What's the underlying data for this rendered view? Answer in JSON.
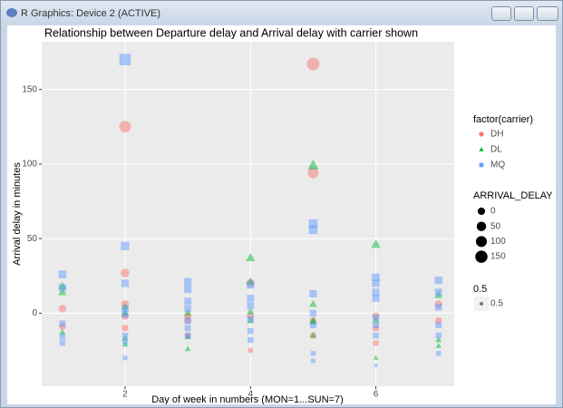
{
  "window_title": "R Graphics: Device 2 (ACTIVE)",
  "chart_data": {
    "type": "scatter",
    "title": "Relationship between Departure delay and Arrival delay with carrier shown",
    "x_label": "Day of week in numbers (MON=1...SUN=7)",
    "y_label": "Arrival delay in minutes",
    "xlim": [
      0.67,
      7.25
    ],
    "xticks": [
      2,
      4,
      6
    ],
    "ylim": [
      -49,
      182
    ],
    "yticks": [
      0,
      50,
      100,
      150
    ],
    "grid": true,
    "legend_position": "right",
    "color_legend_title": "factor(carrier)",
    "series": [
      {
        "name": "DH",
        "color": "#F8766D",
        "shape": "circle",
        "x": [
          1,
          1,
          2,
          2,
          2,
          2,
          2,
          3,
          3,
          3,
          4,
          4,
          4,
          5,
          5,
          5,
          5,
          6,
          6,
          6,
          7,
          7
        ],
        "values": [
          3,
          -9,
          125,
          27,
          6,
          -2,
          -10,
          -2,
          -5,
          -15,
          20,
          -2,
          -25,
          167,
          94,
          -5,
          -15,
          -2,
          -10,
          -20,
          6,
          -5
        ]
      },
      {
        "name": "DL",
        "color": "#00BA38",
        "shape": "triangle",
        "x": [
          1,
          1,
          1,
          2,
          2,
          2,
          2,
          3,
          3,
          3,
          4,
          4,
          4,
          4,
          5,
          5,
          5,
          5,
          5,
          6,
          6,
          6,
          7,
          7,
          7
        ],
        "values": [
          18,
          14,
          -13,
          4,
          0,
          -17,
          -21,
          0,
          -16,
          -24,
          37,
          21,
          1,
          -5,
          99,
          6,
          -5,
          -6,
          -15,
          46,
          -5,
          -30,
          12,
          -18,
          -22
        ]
      },
      {
        "name": "MQ",
        "color": "#619CFF",
        "shape": "square",
        "x": [
          1,
          1,
          1,
          1,
          1,
          2,
          2,
          2,
          2,
          2,
          2,
          2,
          2,
          3,
          3,
          3,
          3,
          3,
          3,
          3,
          4,
          4,
          4,
          4,
          4,
          4,
          5,
          5,
          5,
          5,
          5,
          5,
          5,
          6,
          6,
          6,
          6,
          6,
          6,
          6,
          6,
          7,
          7,
          7,
          7,
          7,
          7
        ],
        "values": [
          26,
          17,
          -7,
          -16,
          -20,
          170,
          45,
          20,
          3,
          -1,
          -15,
          -19,
          -30,
          21,
          16,
          8,
          3,
          -5,
          -10,
          -15,
          19,
          10,
          5,
          -4,
          -12,
          -18,
          60,
          56,
          13,
          0,
          -8,
          -27,
          -32,
          24,
          20,
          14,
          10,
          -3,
          -8,
          -15,
          -35,
          22,
          14,
          4,
          -8,
          -15,
          -27
        ]
      }
    ],
    "size_legend": {
      "title": "ARRIVAL_DELAY",
      "values": [
        0,
        50,
        100,
        150
      ]
    },
    "alpha_legend": {
      "title": "0.5",
      "values": [
        0.5
      ]
    }
  }
}
